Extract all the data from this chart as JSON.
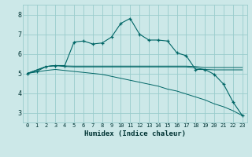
{
  "xlabel": "Humidex (Indice chaleur)",
  "bg_color": "#cce8e8",
  "grid_color": "#99cccc",
  "line_color": "#006666",
  "xlim": [
    -0.5,
    23.5
  ],
  "ylim": [
    2.5,
    8.5
  ],
  "xticks": [
    0,
    1,
    2,
    3,
    4,
    5,
    6,
    7,
    8,
    9,
    10,
    11,
    12,
    13,
    14,
    15,
    16,
    17,
    18,
    19,
    20,
    21,
    22,
    23
  ],
  "yticks": [
    3,
    4,
    5,
    6,
    7,
    8
  ],
  "line1_x": [
    0,
    1,
    2,
    3,
    4,
    5,
    6,
    7,
    8,
    9,
    10,
    11,
    12,
    13,
    14,
    15,
    16,
    17,
    18,
    19,
    20,
    21,
    22,
    23
  ],
  "line1_y": [
    5.0,
    5.1,
    5.35,
    5.4,
    5.4,
    6.6,
    6.65,
    6.5,
    6.55,
    6.85,
    7.55,
    7.8,
    7.0,
    6.7,
    6.7,
    6.65,
    6.05,
    5.9,
    5.2,
    5.2,
    4.95,
    4.45,
    3.55,
    2.85
  ],
  "line2_x": [
    0,
    2,
    3,
    4,
    5,
    6,
    7,
    8,
    9,
    10,
    11,
    12,
    13,
    14,
    15,
    16,
    17,
    18,
    19,
    20,
    21,
    22,
    23
  ],
  "line2_y": [
    5.0,
    5.35,
    5.4,
    5.38,
    5.37,
    5.37,
    5.37,
    5.37,
    5.37,
    5.37,
    5.37,
    5.37,
    5.37,
    5.37,
    5.37,
    5.37,
    5.37,
    5.35,
    5.3,
    5.3,
    5.3,
    5.3,
    5.3
  ],
  "line3_x": [
    0,
    2,
    3,
    4,
    5,
    6,
    7,
    8,
    9,
    10,
    11,
    12,
    13,
    14,
    15,
    16,
    17,
    18,
    19,
    20,
    21,
    22,
    23
  ],
  "line3_y": [
    5.0,
    5.35,
    5.4,
    5.35,
    5.33,
    5.33,
    5.33,
    5.33,
    5.33,
    5.33,
    5.33,
    5.33,
    5.33,
    5.33,
    5.33,
    5.33,
    5.33,
    5.28,
    5.2,
    5.18,
    5.18,
    5.18,
    5.18
  ],
  "line4_x": [
    0,
    2,
    3,
    4,
    5,
    6,
    7,
    8,
    9,
    10,
    11,
    12,
    13,
    14,
    15,
    16,
    17,
    18,
    19,
    20,
    21,
    22,
    23
  ],
  "line4_y": [
    5.0,
    5.15,
    5.2,
    5.15,
    5.1,
    5.05,
    5.0,
    4.95,
    4.85,
    4.75,
    4.65,
    4.55,
    4.45,
    4.35,
    4.2,
    4.1,
    3.95,
    3.8,
    3.65,
    3.45,
    3.3,
    3.1,
    2.85
  ]
}
